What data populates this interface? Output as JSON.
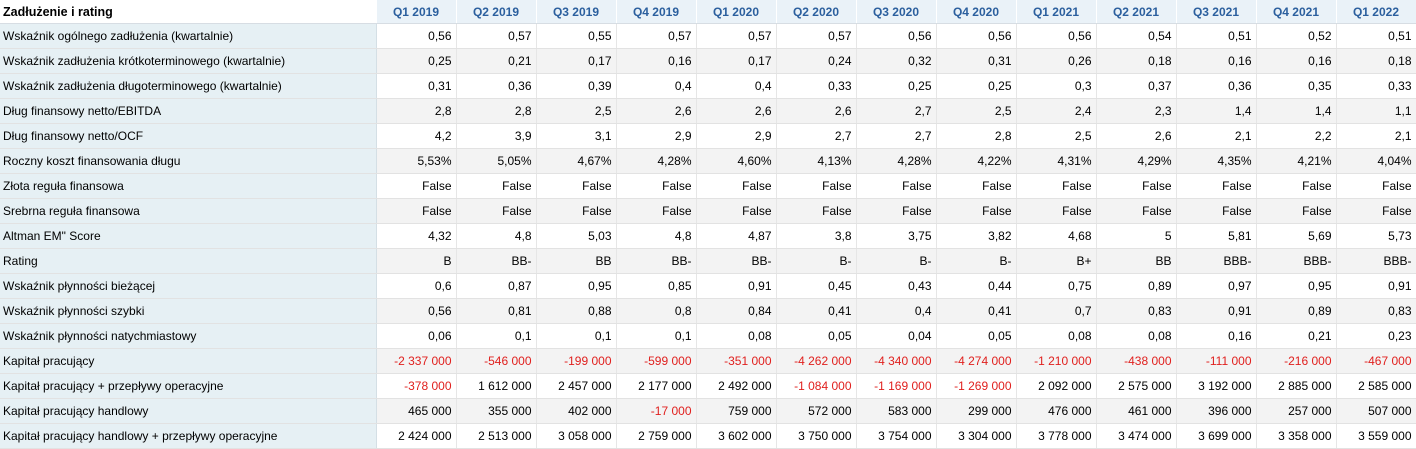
{
  "title": "Zadłużenie i rating",
  "quarters": [
    "Q1 2019",
    "Q2 2019",
    "Q3 2019",
    "Q4 2019",
    "Q1 2020",
    "Q2 2020",
    "Q3 2020",
    "Q4 2020",
    "Q1 2021",
    "Q2 2021",
    "Q3 2021",
    "Q4 2021",
    "Q1 2022"
  ],
  "rows": [
    {
      "label": "Wskaźnik ogólnego zadłużenia (kwartalnie)",
      "values": [
        "0,56",
        "0,57",
        "0,55",
        "0,57",
        "0,57",
        "0,57",
        "0,56",
        "0,56",
        "0,56",
        "0,54",
        "0,51",
        "0,52",
        "0,51"
      ]
    },
    {
      "label": "Wskaźnik zadłużenia krótkoterminowego (kwartalnie)",
      "values": [
        "0,25",
        "0,21",
        "0,17",
        "0,16",
        "0,17",
        "0,24",
        "0,32",
        "0,31",
        "0,26",
        "0,18",
        "0,16",
        "0,16",
        "0,18"
      ]
    },
    {
      "label": "Wskaźnik zadłużenia długoterminowego (kwartalnie)",
      "values": [
        "0,31",
        "0,36",
        "0,39",
        "0,4",
        "0,4",
        "0,33",
        "0,25",
        "0,25",
        "0,3",
        "0,37",
        "0,36",
        "0,35",
        "0,33"
      ]
    },
    {
      "label": "Dług finansowy netto/EBITDA",
      "values": [
        "2,8",
        "2,8",
        "2,5",
        "2,6",
        "2,6",
        "2,6",
        "2,7",
        "2,5",
        "2,4",
        "2,3",
        "1,4",
        "1,4",
        "1,1"
      ]
    },
    {
      "label": "Dług finansowy netto/OCF",
      "values": [
        "4,2",
        "3,9",
        "3,1",
        "2,9",
        "2,9",
        "2,7",
        "2,7",
        "2,8",
        "2,5",
        "2,6",
        "2,1",
        "2,2",
        "2,1"
      ]
    },
    {
      "label": "Roczny koszt finansowania długu",
      "values": [
        "5,53%",
        "5,05%",
        "4,67%",
        "4,28%",
        "4,60%",
        "4,13%",
        "4,28%",
        "4,22%",
        "4,31%",
        "4,29%",
        "4,35%",
        "4,21%",
        "4,04%"
      ]
    },
    {
      "label": "Złota reguła finansowa",
      "values": [
        "False",
        "False",
        "False",
        "False",
        "False",
        "False",
        "False",
        "False",
        "False",
        "False",
        "False",
        "False",
        "False"
      ]
    },
    {
      "label": "Srebrna reguła finansowa",
      "values": [
        "False",
        "False",
        "False",
        "False",
        "False",
        "False",
        "False",
        "False",
        "False",
        "False",
        "False",
        "False",
        "False"
      ]
    },
    {
      "label": "Altman EM\" Score",
      "values": [
        "4,32",
        "4,8",
        "5,03",
        "4,8",
        "4,87",
        "3,8",
        "3,75",
        "3,82",
        "4,68",
        "5",
        "5,81",
        "5,69",
        "5,73"
      ]
    },
    {
      "label": "Rating",
      "values": [
        "B",
        "BB-",
        "BB",
        "BB-",
        "BB-",
        "B-",
        "B-",
        "B-",
        "B+",
        "BB",
        "BBB-",
        "BBB-",
        "BBB-"
      ]
    },
    {
      "label": "Wskaźnik płynności bieżącej",
      "values": [
        "0,6",
        "0,87",
        "0,95",
        "0,85",
        "0,91",
        "0,45",
        "0,43",
        "0,44",
        "0,75",
        "0,89",
        "0,97",
        "0,95",
        "0,91"
      ]
    },
    {
      "label": "Wskaźnik płynności szybki",
      "values": [
        "0,56",
        "0,81",
        "0,88",
        "0,8",
        "0,84",
        "0,41",
        "0,4",
        "0,41",
        "0,7",
        "0,83",
        "0,91",
        "0,89",
        "0,83"
      ]
    },
    {
      "label": "Wskaźnik płynności natychmiastowy",
      "values": [
        "0,06",
        "0,1",
        "0,1",
        "0,1",
        "0,08",
        "0,05",
        "0,04",
        "0,05",
        "0,08",
        "0,08",
        "0,16",
        "0,21",
        "0,23"
      ]
    },
    {
      "label": "Kapitał pracujący",
      "values": [
        "-2 337 000",
        "-546 000",
        "-199 000",
        "-599 000",
        "-351 000",
        "-4 262 000",
        "-4 340 000",
        "-4 274 000",
        "-1 210 000",
        "-438 000",
        "-111 000",
        "-216 000",
        "-467 000"
      ]
    },
    {
      "label": "Kapitał pracujący + przepływy operacyjne",
      "values": [
        "-378 000",
        "1 612 000",
        "2 457 000",
        "2 177 000",
        "2 492 000",
        "-1 084 000",
        "-1 169 000",
        "-1 269 000",
        "2 092 000",
        "2 575 000",
        "3 192 000",
        "2 885 000",
        "2 585 000"
      ]
    },
    {
      "label": "Kapitał pracujący handlowy",
      "values": [
        "465 000",
        "355 000",
        "402 000",
        "-17 000",
        "759 000",
        "572 000",
        "583 000",
        "299 000",
        "476 000",
        "461 000",
        "396 000",
        "257 000",
        "507 000"
      ]
    },
    {
      "label": "Kapitał pracujący handlowy + przepływy operacyjne",
      "values": [
        "2 424 000",
        "2 513 000",
        "3 058 000",
        "2 759 000",
        "3 602 000",
        "3 750 000",
        "3 754 000",
        "3 304 000",
        "3 778 000",
        "3 474 000",
        "3 699 000",
        "3 358 000",
        "3 559 000"
      ]
    }
  ],
  "colors": {
    "negative": "#e0201e",
    "header_text": "#2b5f9e",
    "label_bg": "#e6f0f4"
  }
}
